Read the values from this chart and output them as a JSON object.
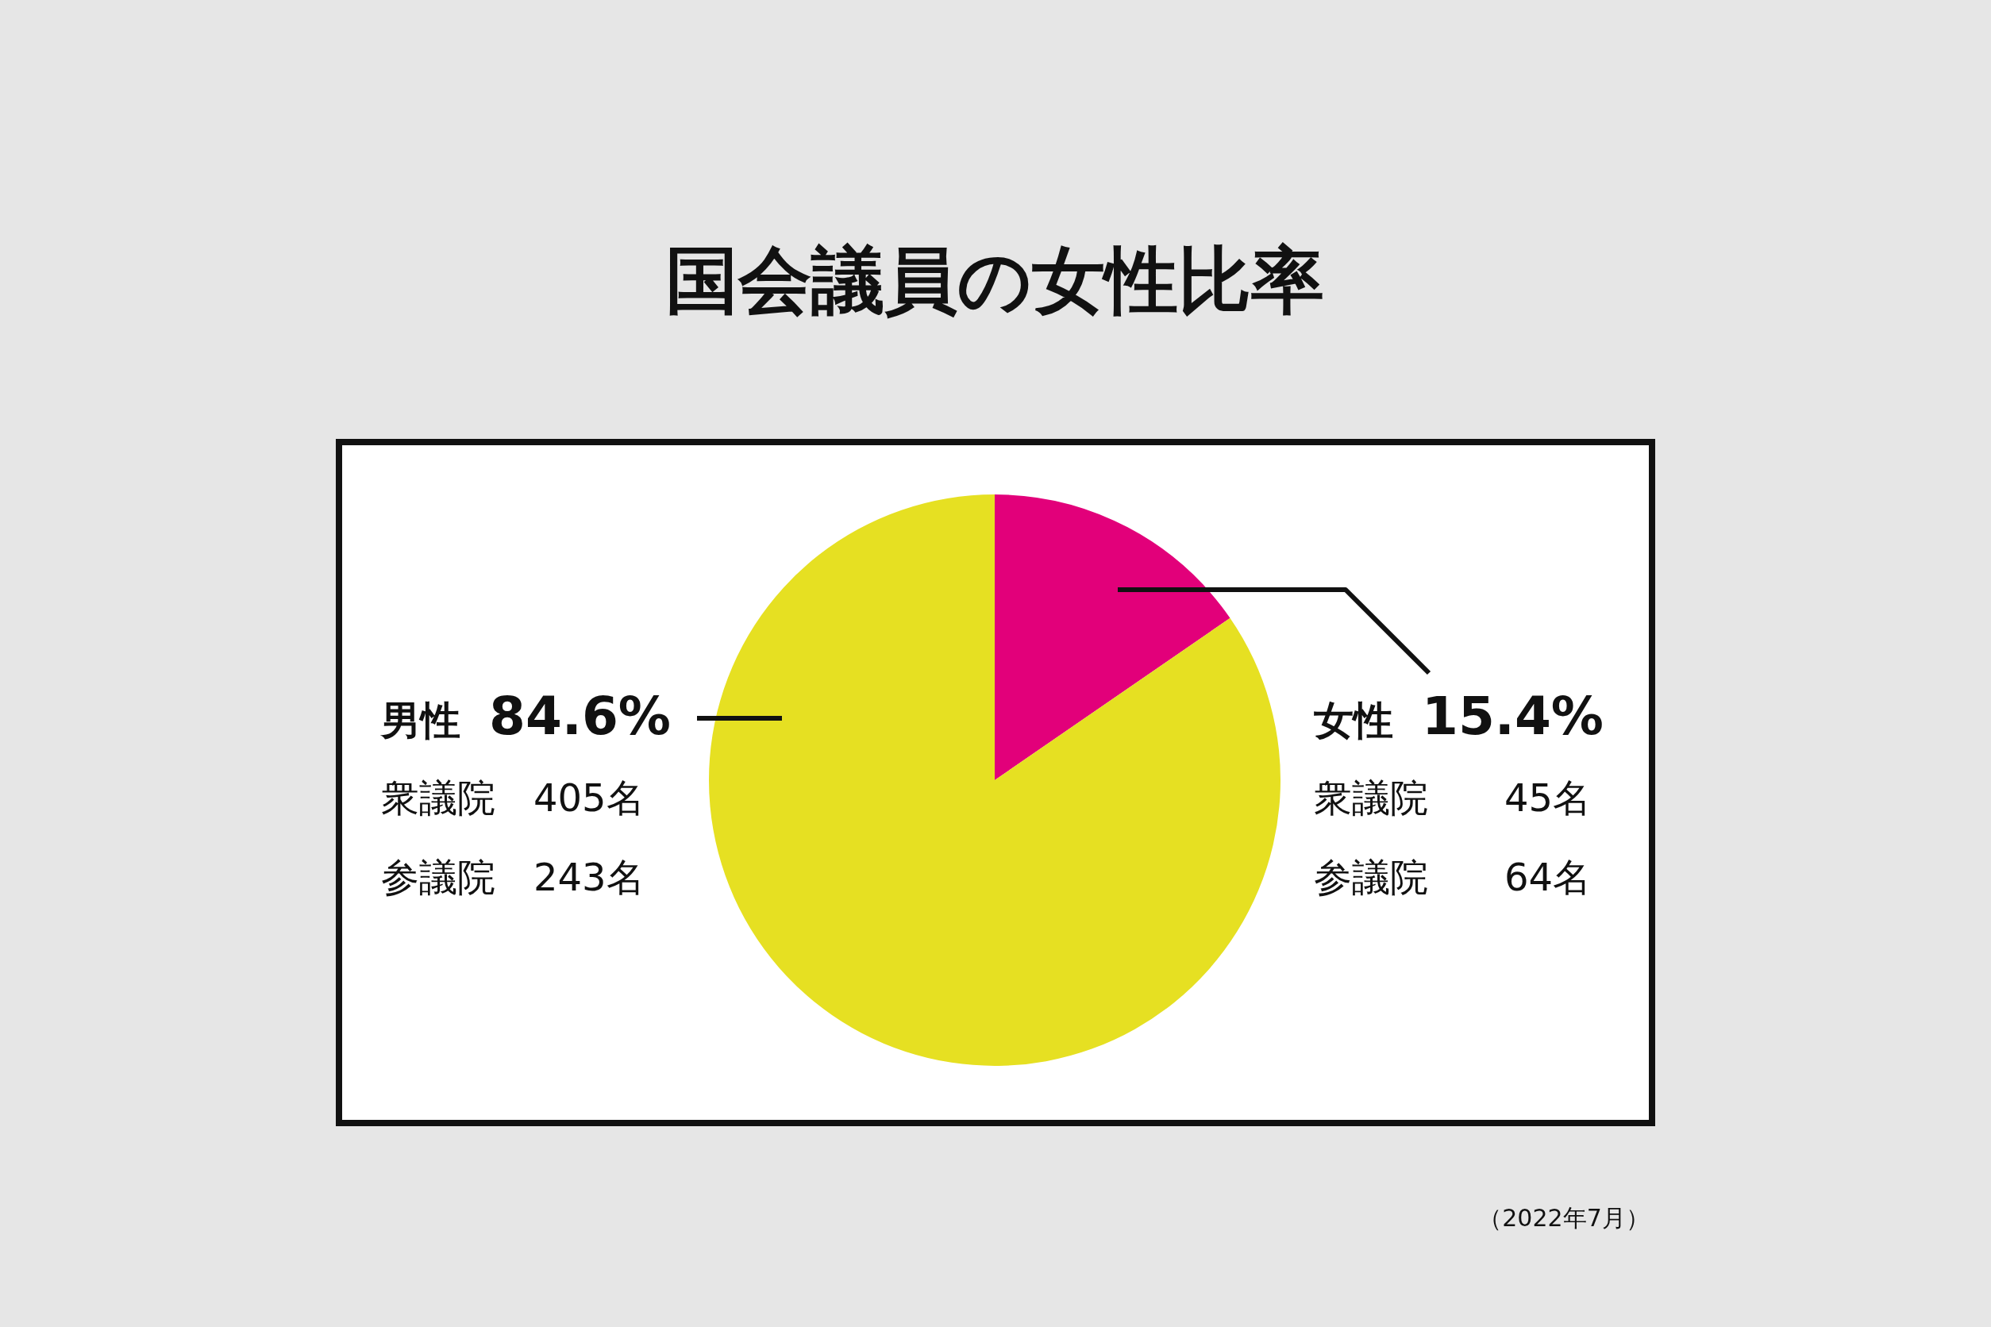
{
  "chart_data": {
    "type": "pie",
    "title": "国会議員の女性比率",
    "categories": [
      "女性",
      "男性"
    ],
    "values": [
      15.4,
      84.6
    ],
    "value_labels": [
      "15.4%",
      "84.6%"
    ],
    "colors": [
      "#e2007a",
      "#e6e022"
    ],
    "legend": false,
    "annotations": [
      "衆議院　　45名",
      "参議院　　64名",
      "衆議院　405名",
      "参議院　243名",
      "（2022年7月）"
    ]
  }
}
